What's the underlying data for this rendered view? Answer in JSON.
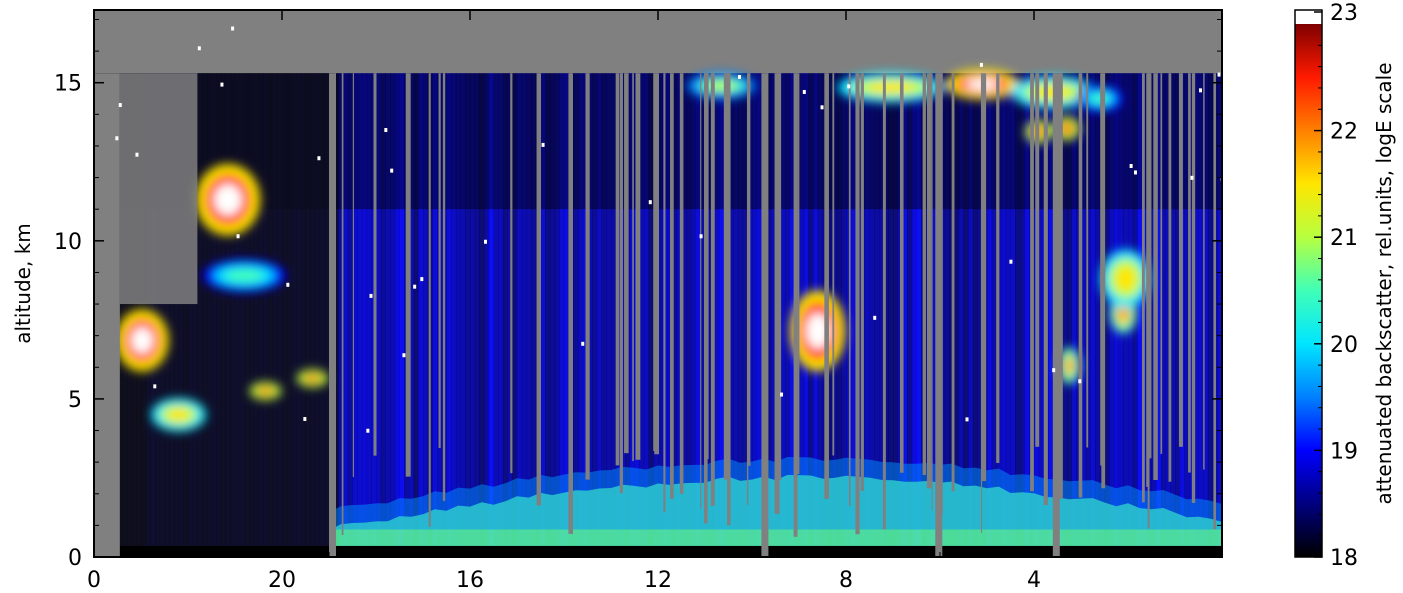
{
  "chart_data": {
    "type": "heatmap",
    "title": "",
    "xlabel": "",
    "ylabel": "altitude, km",
    "x_ticks": [
      "4",
      "8",
      "12",
      "16",
      "20",
      "0"
    ],
    "x_tick_hours": [
      4,
      8,
      12,
      16,
      20,
      24
    ],
    "x_range_hours": [
      0,
      24
    ],
    "y_ticks": [
      "0",
      "5",
      "10",
      "15"
    ],
    "y_tick_values": [
      0,
      5,
      10,
      15
    ],
    "ylim": [
      0,
      17.3
    ],
    "data_ceiling_km": 15.3,
    "grid": false,
    "colorbar": {
      "label": "attenuated backscatter, rel.units, logE scale",
      "ticks": [
        "18",
        "19",
        "20",
        "21",
        "22",
        "23"
      ],
      "tick_values": [
        18,
        19,
        20,
        21,
        22,
        23
      ],
      "range": [
        18,
        23
      ],
      "saturation_color": "#ffffff",
      "stops": [
        "#000000",
        "#00007f",
        "#0000ff",
        "#0080ff",
        "#00e5ff",
        "#40ffb7",
        "#b7ff40",
        "#ffe600",
        "#ff8000",
        "#ff1a00",
        "#7f0000"
      ]
    },
    "features": {
      "no_data_color": "#808080",
      "clouds": [
        {
          "t0": 0.55,
          "t1": 1.5,
          "z0": 6.0,
          "z1": 7.7,
          "level": 23
        },
        {
          "t0": 1.3,
          "t1": 2.3,
          "z0": 4.1,
          "z1": 4.9,
          "level": 21.5
        },
        {
          "t0": 2.25,
          "t1": 3.45,
          "z0": 10.3,
          "z1": 12.3,
          "level": 23
        },
        {
          "t0": 2.4,
          "t1": 4.0,
          "z0": 8.5,
          "z1": 9.3,
          "level": 20.5
        },
        {
          "t0": 3.4,
          "t1": 3.9,
          "z0": 5.1,
          "z1": 5.4,
          "level": 22.5
        },
        {
          "t0": 4.4,
          "t1": 4.9,
          "z0": 5.5,
          "z1": 5.8,
          "level": 22.5
        },
        {
          "t0": 12.7,
          "t1": 14.0,
          "z0": 14.6,
          "z1": 15.2,
          "level": 21
        },
        {
          "t0": 14.9,
          "t1": 15.9,
          "z0": 6.0,
          "z1": 8.3,
          "level": 23
        },
        {
          "t0": 15.9,
          "t1": 18.0,
          "z0": 14.5,
          "z1": 15.2,
          "level": 21.5
        },
        {
          "t0": 18.2,
          "t1": 19.6,
          "z0": 14.6,
          "z1": 15.3,
          "level": 23
        },
        {
          "t0": 19.6,
          "t1": 21.2,
          "z0": 14.3,
          "z1": 15.1,
          "level": 21.5
        },
        {
          "t0": 21.0,
          "t1": 21.8,
          "z0": 14.2,
          "z1": 14.8,
          "level": 20.5
        },
        {
          "t0": 19.9,
          "t1": 20.3,
          "z0": 13.2,
          "z1": 13.7,
          "level": 22.5
        },
        {
          "t0": 20.5,
          "t1": 20.9,
          "z0": 13.3,
          "z1": 13.8,
          "level": 22.5
        },
        {
          "t0": 20.6,
          "t1": 20.9,
          "z0": 5.6,
          "z1": 6.5,
          "level": 22
        },
        {
          "t0": 21.7,
          "t1": 22.1,
          "z0": 7.2,
          "z1": 8.2,
          "level": 22
        },
        {
          "t0": 21.5,
          "t1": 22.4,
          "z0": 8.0,
          "z1": 9.6,
          "level": 21.5
        }
      ]
    }
  }
}
